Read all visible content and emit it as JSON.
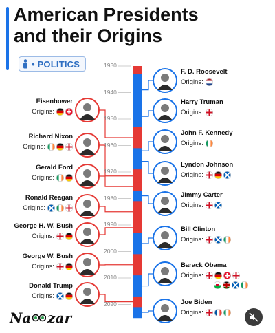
{
  "header": {
    "title_line1": "American Presidents",
    "title_line2": "and their Origins",
    "badge": "• POLITICS",
    "badge_icon": "person-icon"
  },
  "brand": {
    "logo_text": "Nazar",
    "logo_icon": "binoculars-icon"
  },
  "controls": {
    "mute_icon": "mute-icon"
  },
  "origins_label": "Origins:",
  "decades": [
    "1930",
    "1940",
    "1950",
    "1960",
    "1970",
    "1980",
    "1990",
    "2000",
    "2010",
    "2020"
  ],
  "presidents": [
    {
      "name": "F. D. Roosevelt",
      "side": "right",
      "flags": [
        "NL"
      ]
    },
    {
      "name": "Eisenhower",
      "side": "left",
      "flags": [
        "DE",
        "CH"
      ]
    },
    {
      "name": "Harry Truman",
      "side": "right",
      "flags": [
        "EN"
      ]
    },
    {
      "name": "Richard Nixon",
      "side": "left",
      "flags": [
        "IE",
        "DE",
        "EN"
      ]
    },
    {
      "name": "John F. Kennedy",
      "side": "right",
      "flags": [
        "IE"
      ]
    },
    {
      "name": "Gerald Ford",
      "side": "left",
      "flags": [
        "IE",
        "DE"
      ]
    },
    {
      "name": "Lyndon Johnson",
      "side": "right",
      "flags": [
        "EN",
        "DE",
        "SC"
      ]
    },
    {
      "name": "Ronald Reagan",
      "side": "left",
      "flags": [
        "SC",
        "IE",
        "EN"
      ]
    },
    {
      "name": "Jimmy Carter",
      "side": "right",
      "flags": [
        "EN",
        "SC"
      ]
    },
    {
      "name": "George H. W. Bush",
      "side": "left",
      "flags": [
        "EN",
        "DE"
      ]
    },
    {
      "name": "Bill Clinton",
      "side": "right",
      "flags": [
        "EN",
        "SC",
        "IE"
      ]
    },
    {
      "name": "George W. Bush",
      "side": "left",
      "flags": [
        "EN",
        "DE"
      ]
    },
    {
      "name": "Barack Obama",
      "side": "right",
      "flags": [
        "EN",
        "DE",
        "CH",
        "EN",
        "WA",
        "KE",
        "SC",
        "IE"
      ]
    },
    {
      "name": "Donald Trump",
      "side": "left",
      "flags": [
        "SC",
        "DE"
      ]
    },
    {
      "name": "Joe Biden",
      "side": "right",
      "flags": [
        "EN",
        "FR",
        "IE"
      ]
    }
  ],
  "colors": {
    "democrat": "#1a73e8",
    "republican": "#e53935",
    "accent": "#1a73e8"
  }
}
